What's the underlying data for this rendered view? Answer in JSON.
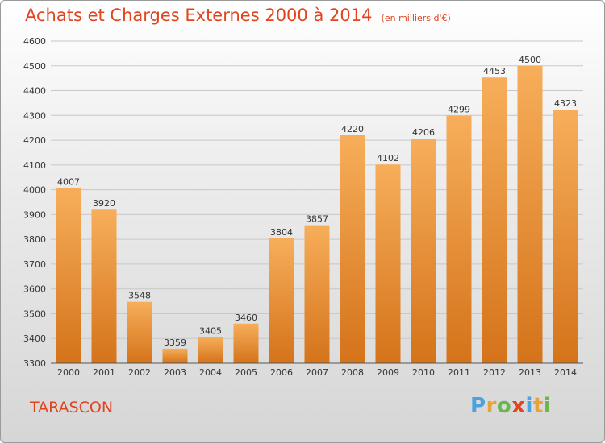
{
  "title": "Achats et Charges Externes 2000 à 2014",
  "unit_note": "(en milliers d'€)",
  "town": "TARASCON",
  "logo": {
    "letters": [
      "P",
      "r",
      "o",
      "x",
      "i",
      "t",
      "i"
    ],
    "colors": [
      "#4aa3df",
      "#e8a23a",
      "#66b84c",
      "#e0451f",
      "#4aa3df",
      "#e8a23a",
      "#66b84c"
    ]
  },
  "colors": {
    "title": "#e0451f",
    "bar_light": "#f7ae5a",
    "bar_dark": "#d4731a",
    "grid": "#c8c8c8"
  },
  "chart_data": {
    "type": "bar",
    "categories": [
      "2000",
      "2001",
      "2002",
      "2003",
      "2004",
      "2005",
      "2006",
      "2007",
      "2008",
      "2009",
      "2010",
      "2011",
      "2012",
      "2013",
      "2014"
    ],
    "values": [
      4007,
      3920,
      3548,
      3359,
      3405,
      3460,
      3804,
      3857,
      4220,
      4102,
      4206,
      4299,
      4453,
      4500,
      4323
    ],
    "title": "Achats et Charges Externes 2000 à 2014",
    "xlabel": "",
    "ylabel": "",
    "ylim": [
      3300,
      4600
    ],
    "yticks": [
      3300,
      3400,
      3500,
      3600,
      3700,
      3800,
      3900,
      4000,
      4100,
      4200,
      4300,
      4400,
      4500,
      4600
    ],
    "grid": true,
    "legend": "none"
  }
}
